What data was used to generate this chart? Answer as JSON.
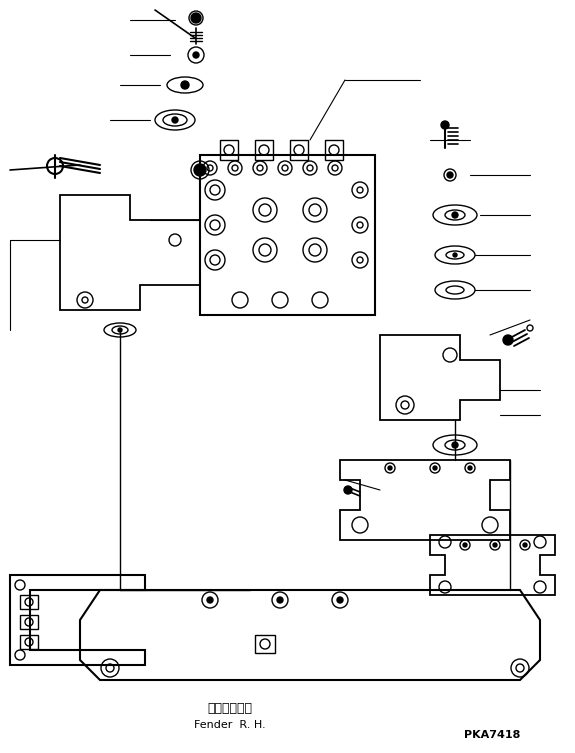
{
  "title": "",
  "background_color": "#ffffff",
  "line_color": "#000000",
  "text_bottom_japanese": "フェンダ右山",
  "text_bottom_english": "Fender  R. H.",
  "text_code": "PKA7418",
  "figsize": [
    5.75,
    7.53
  ],
  "dpi": 100
}
